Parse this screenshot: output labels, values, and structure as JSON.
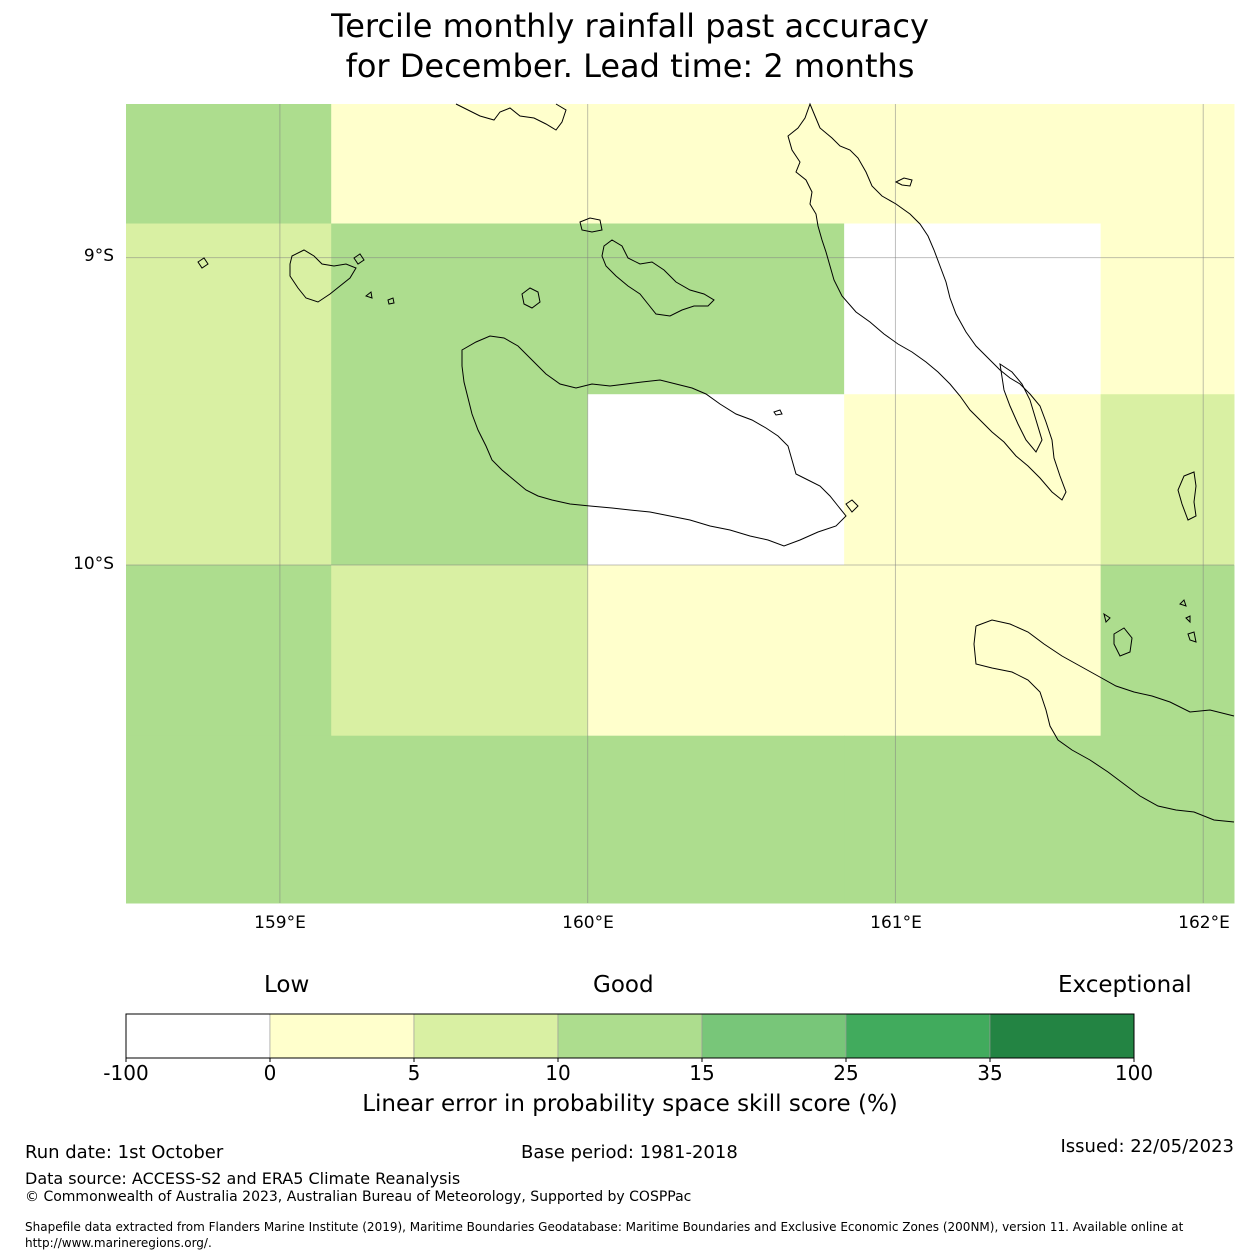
{
  "title": {
    "line1": "Tercile monthly rainfall past accuracy",
    "line2": "for December. Lead time: 2 months"
  },
  "map": {
    "lon_range": [
      158.5,
      162.1
    ],
    "lat_range": [
      -11.1,
      -8.5
    ],
    "lat_ticks": [
      {
        "value": -9,
        "label": "9°S"
      },
      {
        "value": -10,
        "label": "10°S"
      }
    ],
    "lon_ticks": [
      {
        "value": 159,
        "label": "159°E"
      },
      {
        "value": 160,
        "label": "160°E"
      },
      {
        "value": 161,
        "label": "161°E"
      },
      {
        "value": 162,
        "label": "162°E"
      }
    ],
    "grid_lon_edges": [
      158.5,
      159.1667,
      160.0,
      160.8333,
      161.6667,
      162.1
    ],
    "grid_lat_edges": [
      -8.5,
      -8.8889,
      -9.4444,
      -10.0,
      -10.5556,
      -11.1
    ],
    "cells": [
      [
        "10-15",
        "0-5",
        "0-5",
        "0-5",
        "0-5"
      ],
      [
        "5-10",
        "10-15",
        "10-15",
        "below 0",
        "0-5"
      ],
      [
        "5-10",
        "10-15",
        "below 0",
        "0-5",
        "5-10"
      ],
      [
        "10-15",
        "5-10",
        "0-5",
        "0-5",
        "10-15"
      ],
      [
        "10-15",
        "10-15",
        "10-15",
        "10-15",
        "10-15"
      ]
    ]
  },
  "colorbar": {
    "categories": {
      "low": "Low",
      "good": "Good",
      "exceptional": "Exceptional"
    },
    "bins": [
      {
        "range": "below 0",
        "color": "#ffffff"
      },
      {
        "range": "0-5",
        "color": "#ffffcc"
      },
      {
        "range": "5-10",
        "color": "#d9f0a3"
      },
      {
        "range": "10-15",
        "color": "#addd8e"
      },
      {
        "range": "15-25",
        "color": "#78c679"
      },
      {
        "range": "25-35",
        "color": "#41ab5d"
      },
      {
        "range": "35-100",
        "color": "#238443"
      }
    ],
    "ticks": [
      "-100",
      "0",
      "5",
      "10",
      "15",
      "25",
      "35",
      "100"
    ],
    "label": "Linear error in probability space skill score (%)"
  },
  "footer": {
    "run_date": "Run date: 1st October",
    "base_period": "Base period: 1981-2018",
    "issued": "Issued: 22/05/2023",
    "data_source": "Data source: ACCESS-S2 and ERA5 Climate Reanalysis",
    "copyright": "© Commonwealth of Australia 2023, Australian Bureau of Meteorology, Supported by COSPPac",
    "shapefile_line1": "Shapefile data extracted from Flanders Marine Institute (2019), Maritime Boundaries Geodatabase: Maritime Boundaries and Exclusive Economic Zones (200NM), version 11. Available online at",
    "shapefile_line2": "http://www.marineregions.org/."
  }
}
